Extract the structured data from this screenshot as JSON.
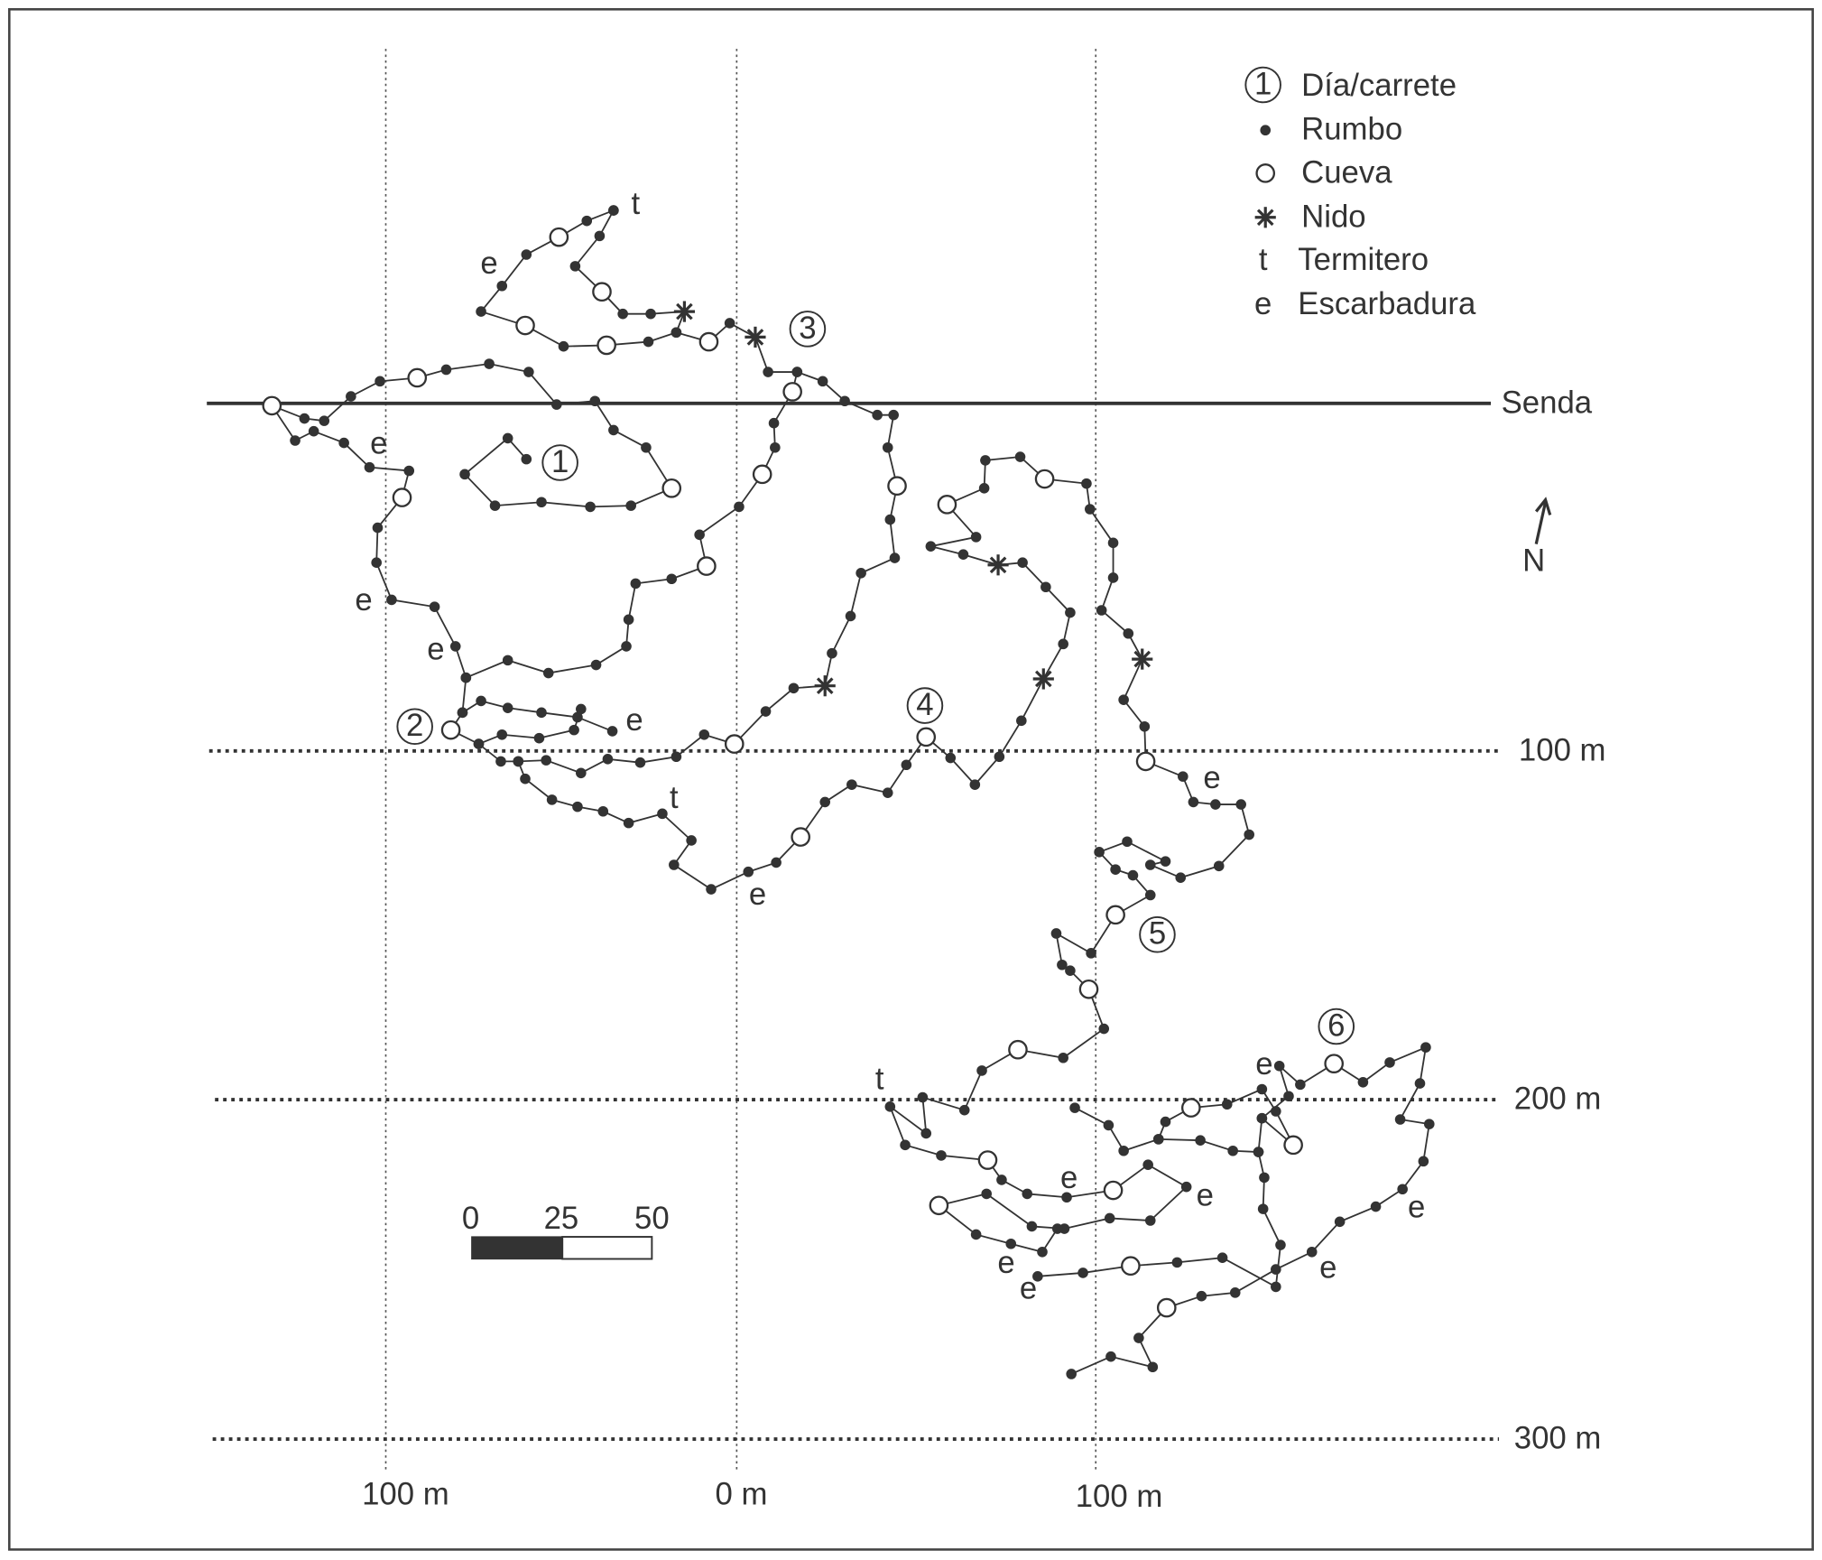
{
  "legend": [
    {
      "symbol": "1",
      "label": "Día/carrete"
    },
    {
      "label": "Rumbo"
    },
    {
      "label": "Cueva"
    },
    {
      "label": "Nido"
    },
    {
      "symbol": "t",
      "label": "Termitero"
    },
    {
      "symbol": "e",
      "label": "Escarbadura"
    }
  ],
  "path_label": "Senda",
  "north": "N",
  "x_labels": [
    "100 m",
    "0 m",
    "100 m"
  ],
  "y_labels": [
    "100 m",
    "200 m",
    "300 m"
  ],
  "scale_bar": [
    "0",
    "25",
    "50"
  ],
  "day_labels": [
    "1",
    "2",
    "3",
    "4",
    "5",
    "6"
  ],
  "track_labels": [
    "t",
    "e",
    "e",
    "e",
    "e",
    "e",
    "t",
    "e",
    "e",
    "t",
    "e",
    "e",
    "e",
    "e",
    "e",
    "e",
    "e"
  ]
}
